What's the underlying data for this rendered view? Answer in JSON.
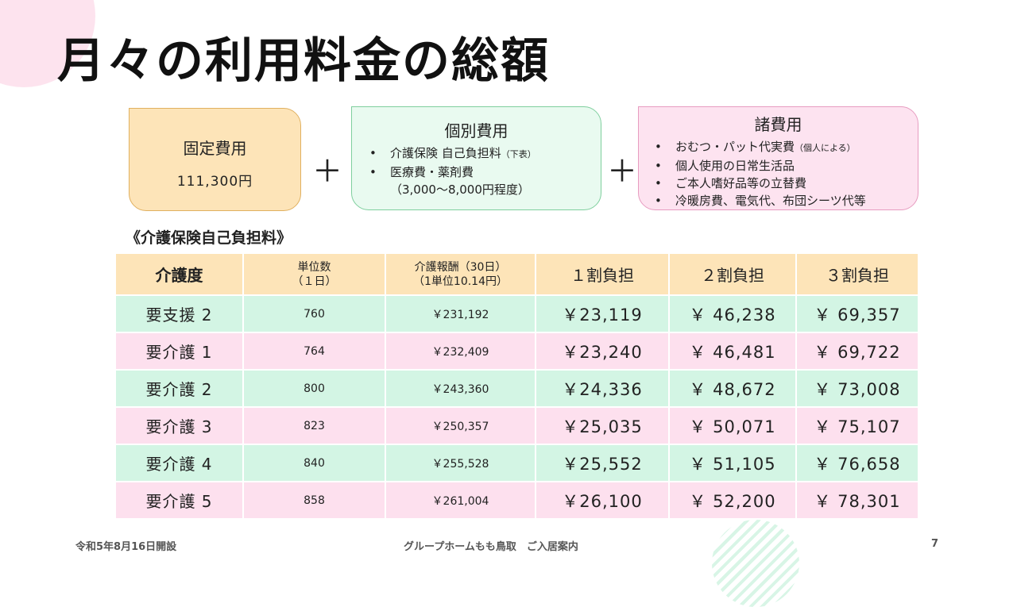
{
  "title": "月々の利用料金の総額",
  "fixed_cost": {
    "heading": "固定費用",
    "value": "111,300円"
  },
  "individual_cost": {
    "heading": "個別費用",
    "items": [
      {
        "text": "介護保険 自己負担料",
        "note": "（下表）"
      },
      {
        "text": "医療費・薬剤費",
        "note": ""
      }
    ],
    "note_line": "（3,000～8,000円程度）"
  },
  "misc_cost": {
    "heading": "諸費用",
    "items": [
      {
        "text": "おむつ・パット代実費",
        "note": "（個人による）"
      },
      {
        "text": "個人使用の日常生活品",
        "note": ""
      },
      {
        "text": "ご本人嗜好品等の立替費",
        "note": ""
      },
      {
        "text": "冷暖房費、電気代、布団シーツ代等",
        "note": ""
      }
    ]
  },
  "bullet": "•",
  "plus_sign": "＋",
  "subheading": "《介護保険自己負担料》",
  "table": {
    "headers": [
      [
        "介護度"
      ],
      [
        "単位数",
        "（１日）"
      ],
      [
        "介護報酬（30日）",
        "（1単位10.14円）"
      ],
      [
        "１割負担"
      ],
      [
        "２割負担"
      ],
      [
        "３割負担"
      ]
    ],
    "rows": [
      [
        "要支援 2",
        "760",
        "￥231,192",
        "￥23,119",
        "￥ 46,238",
        "￥ 69,357"
      ],
      [
        "要介護 1",
        "764",
        "￥232,409",
        "￥23,240",
        "￥ 46,481",
        "￥ 69,722"
      ],
      [
        "要介護 2",
        "800",
        "￥243,360",
        "￥24,336",
        "￥ 48,672",
        "￥ 73,008"
      ],
      [
        "要介護 3",
        "823",
        "￥250,357",
        "￥25,035",
        "￥ 50,071",
        "￥ 75,107"
      ],
      [
        "要介護 4",
        "840",
        "￥255,528",
        "￥25,552",
        "￥ 51,105",
        "￥ 76,658"
      ],
      [
        "要介護 5",
        "858",
        "￥261,004",
        "￥26,100",
        "￥ 52,200",
        "￥ 78,301"
      ]
    ]
  },
  "footer": {
    "left": "令和5年8月16日開設",
    "center": "グループホームもも鳥取　ご入居案内",
    "page_number": "7"
  },
  "colors": {
    "header_bg": "#fde4b8",
    "row_green": "#d3f5e4",
    "row_pink": "#fde0ee",
    "fixed_box": "#fde4b8",
    "individual_box": "#e9faf0",
    "misc_box": "#fde3f0"
  }
}
